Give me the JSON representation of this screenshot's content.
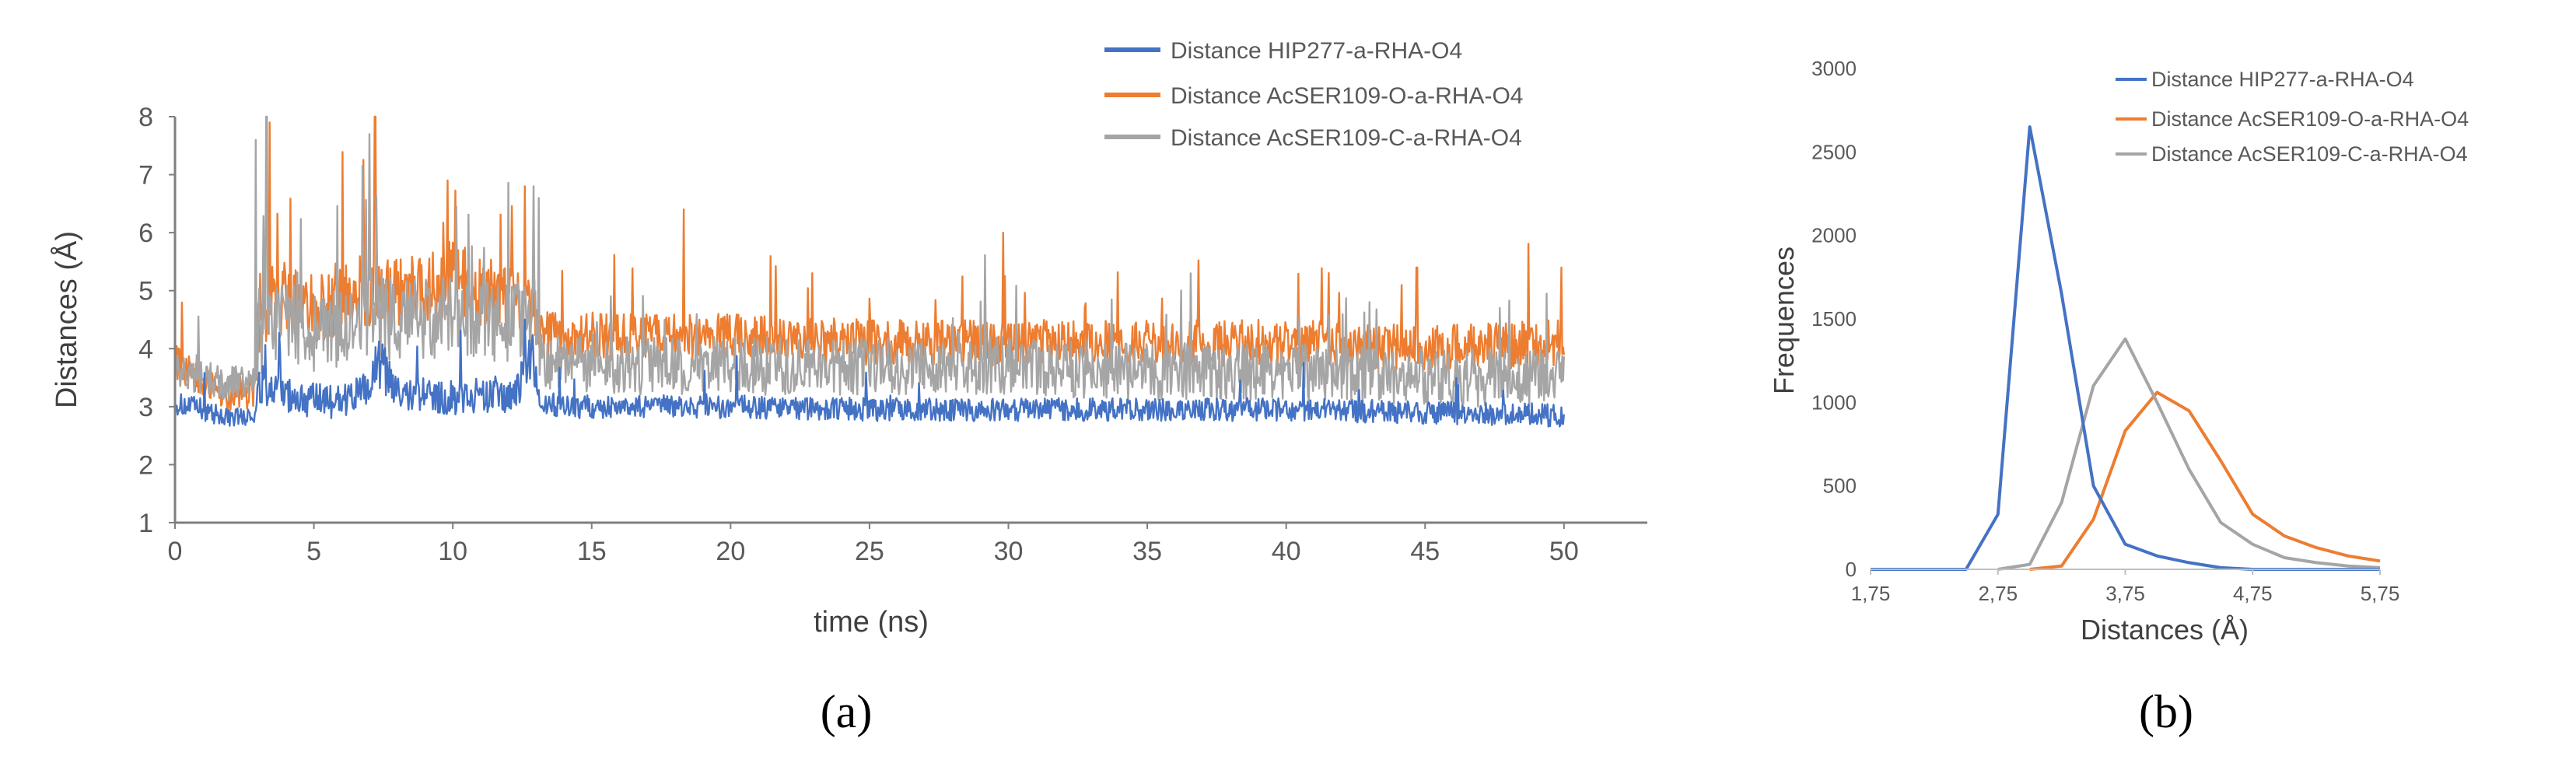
{
  "figure": {
    "label_a": "(a)",
    "label_b": "(b)"
  },
  "chart_data": [
    {
      "id": "a",
      "type": "line",
      "title": "",
      "xlabel": "time (ns)",
      "ylabel": "Distances (Å)",
      "xlim": [
        0,
        53
      ],
      "ylim": [
        1,
        8
      ],
      "xticks": [
        0,
        5,
        10,
        15,
        20,
        25,
        30,
        35,
        40,
        45,
        50
      ],
      "yticks": [
        1,
        2,
        3,
        4,
        5,
        6,
        7,
        8
      ],
      "grid": false,
      "legend_position": "top-right",
      "series": [
        {
          "name": "Distance HIP277-a-RHA-O4",
          "color": "#4472C4",
          "x": [
            0,
            1,
            2,
            2.9,
            3,
            4,
            5,
            6,
            7,
            7.3,
            8,
            9,
            10,
            11,
            12,
            12.9,
            13.1,
            14,
            16,
            20,
            25,
            30,
            35,
            40,
            45,
            50
          ],
          "y_mid": [
            3.05,
            2.95,
            2.8,
            2.85,
            3.3,
            3.2,
            3.1,
            3.1,
            3.3,
            3.8,
            3.2,
            3.2,
            3.15,
            3.2,
            3.1,
            3.8,
            3.1,
            3.0,
            3.0,
            3.0,
            2.95,
            2.95,
            2.95,
            2.95,
            2.9,
            2.85
          ],
          "y_amp": [
            0.2,
            0.2,
            0.15,
            0.15,
            0.3,
            0.3,
            0.3,
            0.3,
            0.3,
            0.6,
            0.3,
            0.3,
            0.3,
            0.3,
            0.3,
            0.5,
            0.2,
            0.2,
            0.2,
            0.2,
            0.2,
            0.2,
            0.2,
            0.2,
            0.2,
            0.2
          ]
        },
        {
          "name": "Distance AcSER109-O-a-RHA-O4",
          "color": "#ED7D31",
          "x": [
            0,
            1,
            2,
            2.9,
            3,
            4,
            5,
            6,
            7,
            8,
            9,
            10,
            11,
            12,
            12.9,
            13.1,
            14,
            16,
            20,
            25,
            30,
            35,
            40,
            45,
            50
          ],
          "y_mid": [
            3.8,
            3.4,
            3.2,
            3.3,
            4.6,
            4.9,
            4.7,
            4.8,
            5.0,
            5.0,
            5.0,
            5.2,
            5.0,
            4.8,
            4.9,
            4.3,
            4.2,
            4.2,
            4.2,
            4.1,
            4.1,
            4.1,
            4.1,
            4.0,
            4.1
          ],
          "y_amp": [
            0.3,
            0.3,
            0.3,
            0.3,
            0.7,
            0.6,
            0.6,
            0.6,
            0.7,
            0.6,
            0.6,
            0.7,
            0.6,
            0.6,
            0.6,
            0.4,
            0.4,
            0.4,
            0.4,
            0.4,
            0.4,
            0.4,
            0.4,
            0.4,
            0.4
          ],
          "peaks": [
            [
              3.4,
              7.9
            ],
            [
              7.2,
              8.0
            ],
            [
              9.8,
              6.9
            ],
            [
              12.6,
              6.8
            ],
            [
              18.3,
              6.4
            ],
            [
              29.8,
              6.0
            ],
            [
              44.7,
              5.4
            ],
            [
              49.9,
              5.4
            ]
          ]
        },
        {
          "name": "Distance AcSER109-C-a-RHA-O4",
          "color": "#A5A5A5",
          "x": [
            0,
            1,
            2,
            2.9,
            3,
            4,
            5,
            6,
            7,
            8,
            9,
            10,
            11,
            12,
            12.9,
            13.1,
            14,
            16,
            20,
            25,
            30,
            35,
            40,
            45,
            50
          ],
          "y_mid": [
            3.6,
            3.5,
            3.4,
            3.4,
            4.3,
            4.5,
            4.3,
            4.4,
            4.6,
            4.5,
            4.5,
            4.6,
            4.5,
            4.4,
            4.6,
            3.8,
            3.8,
            3.7,
            3.7,
            3.7,
            3.7,
            3.6,
            3.6,
            3.5,
            3.5
          ],
          "y_amp": [
            0.3,
            0.3,
            0.3,
            0.3,
            0.8,
            0.7,
            0.7,
            0.7,
            0.8,
            0.7,
            0.7,
            0.7,
            0.7,
            0.7,
            0.8,
            0.5,
            0.5,
            0.5,
            0.5,
            0.5,
            0.5,
            0.5,
            0.5,
            0.5,
            0.5
          ],
          "peaks": [
            [
              2.9,
              7.6
            ],
            [
              3.3,
              8.0
            ],
            [
              7.0,
              7.7
            ],
            [
              12.9,
              6.8
            ],
            [
              13.1,
              6.6
            ]
          ]
        }
      ]
    },
    {
      "id": "b",
      "type": "line",
      "title": "",
      "xlabel": "Distances (Å)",
      "ylabel": "Frequences",
      "xlim": [
        1.75,
        5.75
      ],
      "ylim": [
        0,
        3000
      ],
      "xtick_values": [
        1.75,
        2.75,
        3.75,
        4.75,
        5.75
      ],
      "xtick_labels": [
        "1,75",
        "2,75",
        "3,75",
        "4,75",
        "5,75"
      ],
      "yticks": [
        0,
        500,
        1000,
        1500,
        2000,
        2500,
        3000
      ],
      "grid": false,
      "legend_position": "top-right",
      "series": [
        {
          "name": "Distance HIP277-a-RHA-O4",
          "color": "#4472C4",
          "x": [
            1.75,
            2.5,
            2.75,
            3.0,
            3.25,
            3.5,
            3.75,
            4.0,
            4.25,
            4.5,
            4.75,
            5.75
          ],
          "y": [
            0,
            0,
            330,
            2650,
            1650,
            500,
            150,
            80,
            40,
            10,
            0,
            0
          ]
        },
        {
          "name": "Distance AcSER109-O-a-RHA-O4",
          "color": "#ED7D31",
          "x": [
            3.0,
            3.25,
            3.5,
            3.75,
            4.0,
            4.25,
            4.5,
            4.75,
            5.0,
            5.25,
            5.5,
            5.75
          ],
          "y": [
            0,
            20,
            300,
            830,
            1060,
            950,
            650,
            330,
            200,
            130,
            80,
            50
          ]
        },
        {
          "name": "Distance AcSER109-C-a-RHA-O4",
          "color": "#A5A5A5",
          "x": [
            2.75,
            3.0,
            3.25,
            3.5,
            3.75,
            4.0,
            4.25,
            4.5,
            4.75,
            5.0,
            5.25,
            5.5,
            5.75
          ],
          "y": [
            0,
            30,
            400,
            1100,
            1380,
            1000,
            600,
            280,
            150,
            70,
            40,
            20,
            10
          ]
        }
      ]
    }
  ]
}
